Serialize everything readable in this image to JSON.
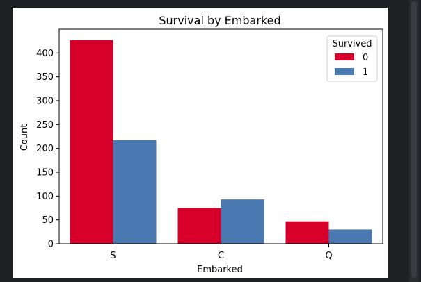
{
  "chart_data": {
    "type": "bar",
    "title": "Survival by Embarked",
    "xlabel": "Embarked",
    "ylabel": "Count",
    "categories": [
      "S",
      "C",
      "Q"
    ],
    "ylim": [
      0,
      450
    ],
    "yticks": [
      0,
      50,
      100,
      150,
      200,
      250,
      300,
      350,
      400
    ],
    "grid": false,
    "legend": {
      "title": "Survived",
      "placement": "top-right"
    },
    "series": [
      {
        "name": "0",
        "color": "#d6002a",
        "values": [
          427,
          75,
          47
        ]
      },
      {
        "name": "1",
        "color": "#4a78b0",
        "values": [
          217,
          93,
          30
        ]
      }
    ]
  }
}
